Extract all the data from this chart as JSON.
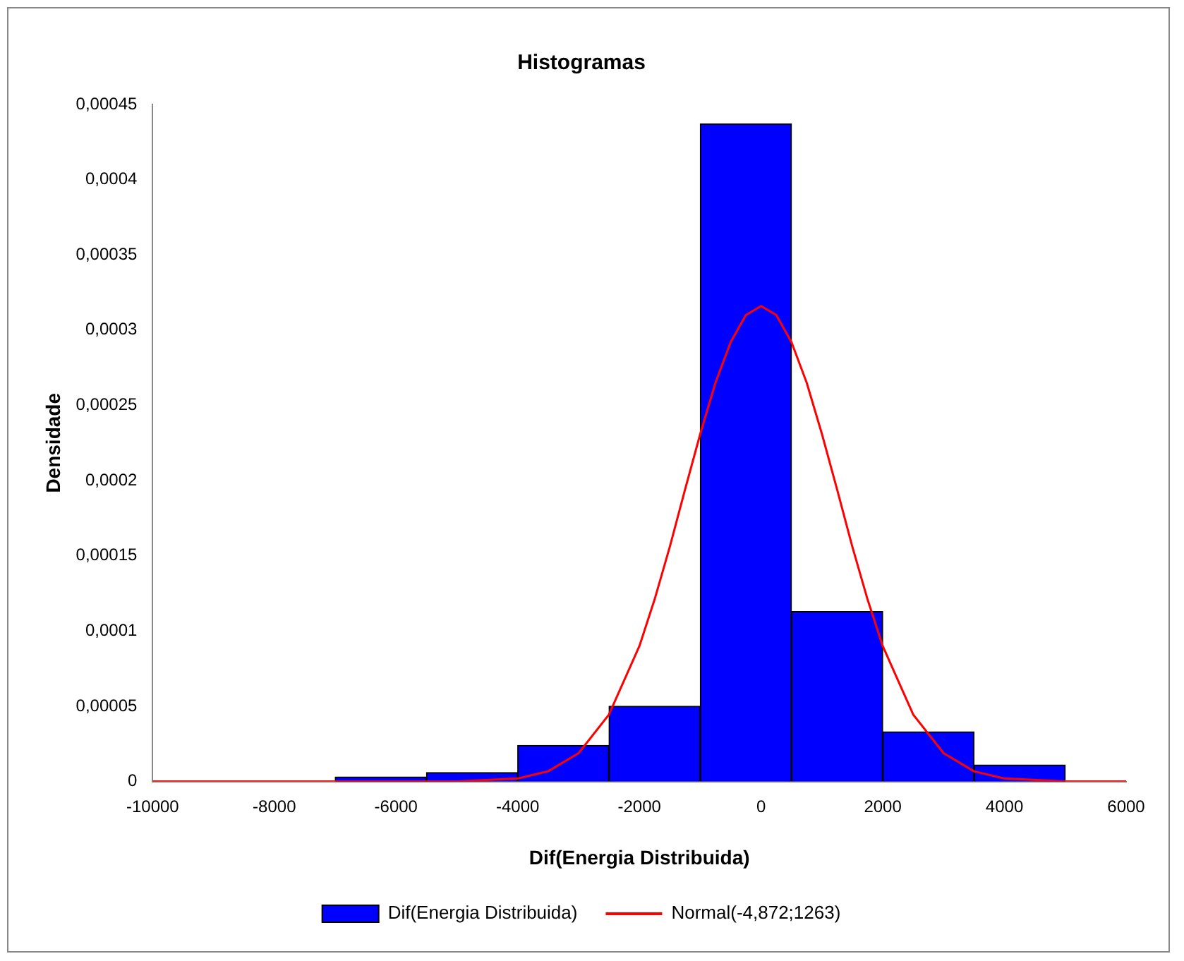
{
  "chart_data": {
    "type": "histogram",
    "title": "Histogramas",
    "xlabel": "Dif(Energia Distribuida)",
    "ylabel": "Densidade",
    "bins": [
      -7000,
      -5500,
      -4000,
      -2500,
      -1000,
      500,
      2000,
      3500,
      5000
    ],
    "series": [
      {
        "name": "Dif(Energia Distribuida)",
        "color": "#0000ff",
        "values": [
          3e-06,
          6e-06,
          2.4e-05,
          5e-05,
          0.000437,
          0.000113,
          3.3e-05,
          1.1e-05
        ]
      },
      {
        "type": "line",
        "name": "Normal(-4,872;1263)",
        "color": "#ff0000",
        "x": [
          -10000,
          -6000,
          -5000,
          -4000,
          -3500,
          -3000,
          -2500,
          -2000,
          -1750,
          -1500,
          -1250,
          -1000,
          -750,
          -500,
          -250,
          0,
          250,
          500,
          750,
          1000,
          1250,
          1500,
          1750,
          2000,
          2500,
          3000,
          3500,
          4000,
          5000,
          6000
        ],
        "values": [
          0,
          0,
          0,
          2e-06,
          6.8e-06,
          1.88e-05,
          4.45e-05,
          9e-05,
          0.000121,
          0.000156,
          0.000194,
          0.000231,
          0.000265,
          0.000292,
          0.00031,
          0.000316,
          0.00031,
          0.000292,
          0.000265,
          0.000231,
          0.000194,
          0.000156,
          0.000121,
          9e-05,
          4.45e-05,
          1.88e-05,
          6.8e-06,
          2e-06,
          0,
          0
        ]
      }
    ],
    "xlim": [
      -10000,
      6000
    ],
    "xticks": [
      -10000,
      -8000,
      -6000,
      -4000,
      -2000,
      0,
      2000,
      4000,
      6000
    ],
    "ylim": [
      0,
      0.00045
    ],
    "yticks": [
      {
        "value": 0,
        "label": "0"
      },
      {
        "value": 5e-05,
        "label": "0,00005"
      },
      {
        "value": 0.0001,
        "label": "0,0001"
      },
      {
        "value": 0.00015,
        "label": "0,00015"
      },
      {
        "value": 0.0002,
        "label": "0,0002"
      },
      {
        "value": 0.00025,
        "label": "0,00025"
      },
      {
        "value": 0.0003,
        "label": "0,0003"
      },
      {
        "value": 0.00035,
        "label": "0,00035"
      },
      {
        "value": 0.0004,
        "label": "0,0004"
      },
      {
        "value": 0.00045,
        "label": "0,00045"
      }
    ],
    "grid": false,
    "legend": "bottom",
    "marker": "none"
  }
}
